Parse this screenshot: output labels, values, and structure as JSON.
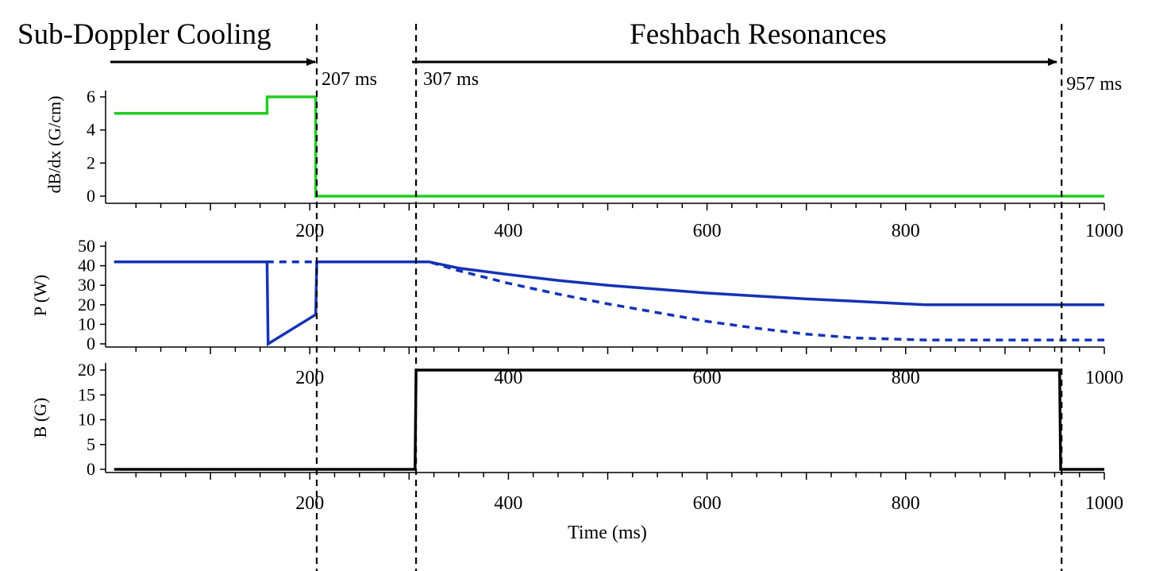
{
  "chart_data": {
    "type": "line",
    "xlabel": "Time (ms)",
    "xlim": [
      0,
      1000
    ],
    "x_ticks": [
      200,
      400,
      600,
      800,
      1000
    ],
    "phases": [
      {
        "label": "Sub-Doppler Cooling",
        "start": 0,
        "end": 207
      },
      {
        "label": "Feshbach Resonances",
        "start": 307,
        "end": 957
      }
    ],
    "markers": [
      {
        "x": 207,
        "label": "207 ms"
      },
      {
        "x": 307,
        "label": "307 ms"
      },
      {
        "x": 957,
        "label": "957 ms"
      }
    ],
    "panels": [
      {
        "ylabel": "dB/dx (G/cm)",
        "ylim": [
          0,
          6
        ],
        "yticks": [
          0,
          2,
          4,
          6
        ],
        "series": [
          {
            "color": "#22cc22",
            "style": "solid",
            "x": [
              3,
              157,
              157,
              206,
              206,
              1000
            ],
            "y": [
              5,
              5,
              6,
              6,
              0,
              0
            ]
          }
        ]
      },
      {
        "ylabel": "P (W)",
        "ylim": [
          0,
          50
        ],
        "yticks": [
          0,
          10,
          20,
          30,
          40,
          50
        ],
        "series": [
          {
            "color": "#1533b5",
            "style": "solid",
            "x": [
              3,
              157,
              158,
              206,
              207,
              320,
              350,
              400,
              450,
              500,
              550,
              600,
              650,
              700,
              750,
              820,
              1000
            ],
            "y": [
              42,
              42,
              0,
              15,
              42,
              42,
              38.8,
              35.5,
              32.5,
              30,
              28,
              26,
              24.5,
              23,
              21.8,
              20,
              20
            ]
          },
          {
            "color": "#1533b5",
            "style": "dashed",
            "x": [
              3,
              157,
              207,
              320,
              350,
              400,
              450,
              500,
              550,
              600,
              650,
              700,
              750,
              820,
              1000
            ],
            "y": [
              42,
              42,
              42,
              42,
              37.5,
              31,
              25.5,
              20.5,
              16,
              11.5,
              8,
              5,
              3,
              2,
              2
            ]
          }
        ]
      },
      {
        "ylabel": "B (G)",
        "ylim": [
          0,
          20
        ],
        "yticks": [
          0,
          5,
          10,
          15,
          20
        ],
        "series": [
          {
            "color": "#000000",
            "style": "solid",
            "x": [
              3,
              306,
              307,
              955,
              956,
              1000
            ],
            "y": [
              0,
              0,
              20,
              20,
              0,
              0
            ]
          }
        ]
      }
    ]
  }
}
